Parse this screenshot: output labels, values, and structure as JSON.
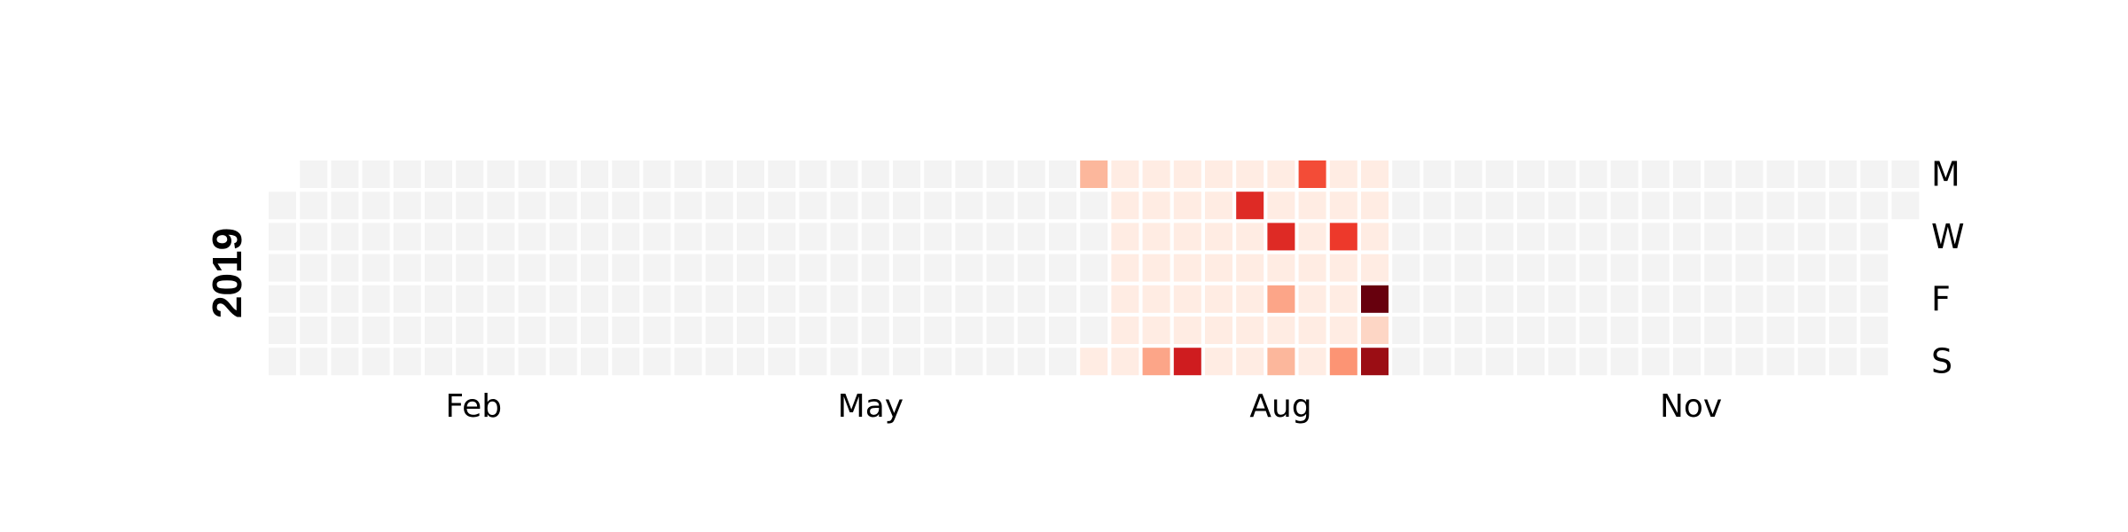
{
  "chart_data": {
    "type": "heatmap",
    "title": "",
    "year": "2019",
    "x_tick_labels": [
      "Feb",
      "May",
      "Aug",
      "Nov"
    ],
    "y_tick_labels": [
      "M",
      "W",
      "F",
      "S"
    ],
    "colormap": "Reds",
    "empty_color": "#f3f3f3",
    "values": [
      {
        "date": "2019-07-01",
        "value": 5
      },
      {
        "date": "2019-07-07",
        "value": 1
      },
      {
        "date": "2019-07-08",
        "value": 1
      },
      {
        "date": "2019-07-09",
        "value": 1
      },
      {
        "date": "2019-07-10",
        "value": 1
      },
      {
        "date": "2019-07-11",
        "value": 1
      },
      {
        "date": "2019-07-12",
        "value": 1
      },
      {
        "date": "2019-07-13",
        "value": 1
      },
      {
        "date": "2019-07-14",
        "value": 1
      },
      {
        "date": "2019-07-15",
        "value": 1
      },
      {
        "date": "2019-07-16",
        "value": 1
      },
      {
        "date": "2019-07-17",
        "value": 1
      },
      {
        "date": "2019-07-18",
        "value": 1
      },
      {
        "date": "2019-07-19",
        "value": 1
      },
      {
        "date": "2019-07-20",
        "value": 1
      },
      {
        "date": "2019-07-21",
        "value": 6
      },
      {
        "date": "2019-07-22",
        "value": 1
      },
      {
        "date": "2019-07-23",
        "value": 1
      },
      {
        "date": "2019-07-24",
        "value": 1
      },
      {
        "date": "2019-07-25",
        "value": 1
      },
      {
        "date": "2019-07-26",
        "value": 1
      },
      {
        "date": "2019-07-27",
        "value": 1
      },
      {
        "date": "2019-07-28",
        "value": 14
      },
      {
        "date": "2019-07-29",
        "value": 1
      },
      {
        "date": "2019-07-30",
        "value": 1
      },
      {
        "date": "2019-07-31",
        "value": 1
      },
      {
        "date": "2019-08-01",
        "value": 1
      },
      {
        "date": "2019-08-02",
        "value": 1
      },
      {
        "date": "2019-08-03",
        "value": 1
      },
      {
        "date": "2019-08-04",
        "value": 1
      },
      {
        "date": "2019-08-05",
        "value": 1
      },
      {
        "date": "2019-08-06",
        "value": 13
      },
      {
        "date": "2019-08-07",
        "value": 1
      },
      {
        "date": "2019-08-08",
        "value": 1
      },
      {
        "date": "2019-08-09",
        "value": 1
      },
      {
        "date": "2019-08-10",
        "value": 1
      },
      {
        "date": "2019-08-11",
        "value": 1
      },
      {
        "date": "2019-08-12",
        "value": 1
      },
      {
        "date": "2019-08-13",
        "value": 1
      },
      {
        "date": "2019-08-14",
        "value": 13
      },
      {
        "date": "2019-08-15",
        "value": 1
      },
      {
        "date": "2019-08-16",
        "value": 6
      },
      {
        "date": "2019-08-17",
        "value": 1
      },
      {
        "date": "2019-08-18",
        "value": 5
      },
      {
        "date": "2019-08-19",
        "value": 11
      },
      {
        "date": "2019-08-20",
        "value": 1
      },
      {
        "date": "2019-08-21",
        "value": 1
      },
      {
        "date": "2019-08-22",
        "value": 1
      },
      {
        "date": "2019-08-23",
        "value": 1
      },
      {
        "date": "2019-08-24",
        "value": 1
      },
      {
        "date": "2019-08-25",
        "value": 1
      },
      {
        "date": "2019-08-26",
        "value": 1
      },
      {
        "date": "2019-08-27",
        "value": 1
      },
      {
        "date": "2019-08-28",
        "value": 12
      },
      {
        "date": "2019-08-29",
        "value": 1
      },
      {
        "date": "2019-08-30",
        "value": 1
      },
      {
        "date": "2019-08-31",
        "value": 1
      },
      {
        "date": "2019-09-01",
        "value": 7
      },
      {
        "date": "2019-09-02",
        "value": 1
      },
      {
        "date": "2019-09-03",
        "value": 1
      },
      {
        "date": "2019-09-04",
        "value": 1
      },
      {
        "date": "2019-09-05",
        "value": 1
      },
      {
        "date": "2019-09-06",
        "value": 19
      },
      {
        "date": "2019-09-07",
        "value": 3
      },
      {
        "date": "2019-09-08",
        "value": 17
      }
    ]
  }
}
